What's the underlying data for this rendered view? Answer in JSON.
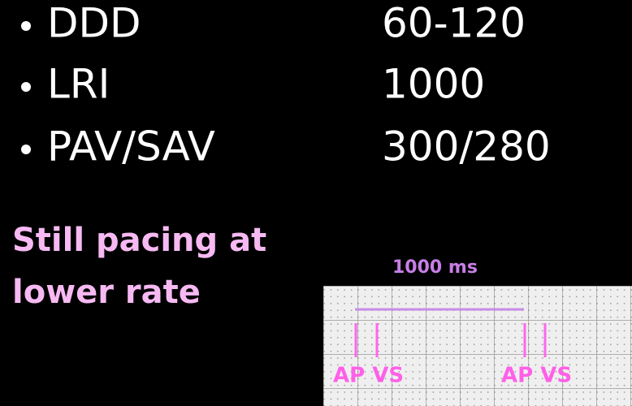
{
  "bullets": [
    {
      "label": "DDD",
      "value": "60-120"
    },
    {
      "label": "LRI",
      "value": "1000"
    },
    {
      "label": "PAV/SAV",
      "value": "300/280"
    }
  ],
  "note": [
    "Still pacing at",
    "lower rate"
  ],
  "strip": {
    "interval_label": "1000 ms",
    "markers": [
      "AP VS",
      "AP VS"
    ]
  }
}
